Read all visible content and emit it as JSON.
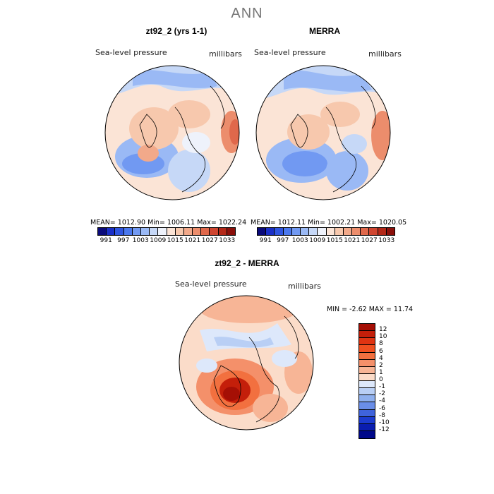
{
  "title": "ANN",
  "panels": [
    {
      "title": "zt92_2 (yrs 1-1)",
      "variable": "Sea-level pressure",
      "units": "millibars",
      "stats": "MEAN= 1012.90   Min= 1006.11   Max= 1022.24"
    },
    {
      "title": "MERRA",
      "variable": "Sea-level pressure",
      "units": "millibars",
      "stats": "MEAN= 1012.11   Min= 1002.21   Max= 1020.05"
    }
  ],
  "diff": {
    "title": "zt92_2 - MERRA",
    "variable": "Sea-level pressure",
    "units": "millibars",
    "stats": "MIN =   -2.62  MAX =   11.74"
  },
  "colorbar": {
    "labels": [
      "991",
      "997",
      "1003",
      "1009",
      "1015",
      "1021",
      "1027",
      "1033"
    ],
    "colors": [
      "#0a0a7a",
      "#1a2fc7",
      "#2f55e0",
      "#4a78ee",
      "#7199f2",
      "#9ab9f5",
      "#c6d8f7",
      "#eef2fb",
      "#fbe4d6",
      "#f7c8ad",
      "#f2a98a",
      "#ec8d6c",
      "#e0684b",
      "#cf4530",
      "#b32818",
      "#8a0f0a"
    ]
  },
  "diff_colorbar": {
    "labels": [
      "12",
      "10",
      "8",
      "6",
      "4",
      "2",
      "1",
      "0",
      "-1",
      "-2",
      "-4",
      "-6",
      "-8",
      "-10",
      "-12"
    ],
    "colors": [
      "#a50f05",
      "#c41f0a",
      "#df3412",
      "#ef5020",
      "#f2703f",
      "#f4906a",
      "#f7b596",
      "#fbdcc9",
      "#dde8fb",
      "#b9cff5",
      "#8fb0ee",
      "#6a8ee8",
      "#3f63dc",
      "#1c3bcf",
      "#0a1db0",
      "#00088a"
    ]
  }
}
